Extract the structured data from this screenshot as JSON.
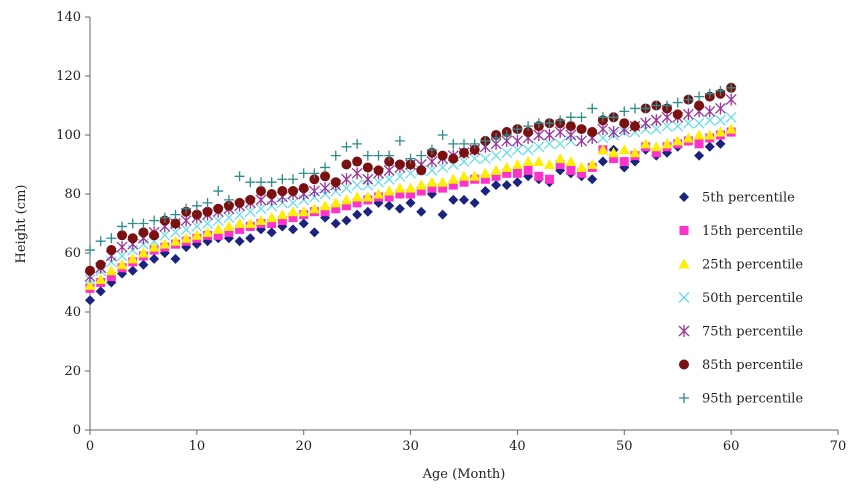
{
  "chart_data": {
    "type": "scatter",
    "title": "",
    "xlabel": "Age (Month)",
    "ylabel": "Height (cm)",
    "xlim": [
      0,
      70
    ],
    "ylim": [
      0,
      140
    ],
    "xticks": [
      0,
      10,
      20,
      30,
      40,
      50,
      60,
      70
    ],
    "yticks": [
      0,
      20,
      40,
      60,
      80,
      100,
      120,
      140
    ],
    "grid": false,
    "legend_position": "right",
    "x": [
      0,
      1,
      2,
      3,
      4,
      5,
      6,
      7,
      8,
      9,
      10,
      11,
      12,
      13,
      14,
      15,
      16,
      17,
      18,
      19,
      20,
      21,
      22,
      23,
      24,
      25,
      26,
      27,
      28,
      29,
      30,
      31,
      32,
      33,
      34,
      35,
      36,
      37,
      38,
      39,
      40,
      41,
      42,
      43,
      44,
      45,
      46,
      47,
      48,
      49,
      50,
      51,
      52,
      53,
      54,
      55,
      56,
      57,
      58,
      59,
      60
    ],
    "series": [
      {
        "name": "5th percentile",
        "marker": "diamond",
        "color": "#1a237e",
        "values": [
          44,
          47,
          50,
          53,
          54,
          56,
          58,
          60,
          58,
          62,
          63,
          64,
          65,
          65,
          64,
          65,
          68,
          67,
          69,
          68,
          70,
          67,
          72,
          70,
          71,
          73,
          74,
          77,
          76,
          75,
          77,
          74,
          80,
          73,
          78,
          78,
          77,
          81,
          83,
          83,
          84,
          86,
          85,
          84,
          88,
          87,
          86,
          85,
          91,
          95,
          89,
          91,
          95,
          93,
          94,
          96,
          98,
          93,
          96,
          97,
          101
        ]
      },
      {
        "name": "15th percentile",
        "marker": "square",
        "color": "#ff33cc",
        "values": [
          48,
          50,
          52,
          55,
          57,
          59,
          61,
          62,
          63,
          64,
          65,
          66,
          66,
          67,
          68,
          69,
          70,
          70,
          71,
          72,
          73,
          74,
          74,
          75,
          76,
          77,
          78,
          79,
          79,
          80,
          80,
          81,
          82,
          82,
          83,
          84,
          85,
          85,
          86,
          87,
          87,
          88,
          86,
          85,
          90,
          88,
          87,
          89,
          95,
          92,
          91,
          93,
          96,
          94,
          96,
          97,
          98,
          97,
          99,
          100,
          101
        ]
      },
      {
        "name": "25th percentile",
        "marker": "triangle",
        "color": "#ffee00",
        "values": [
          49,
          51,
          54,
          56,
          58,
          60,
          62,
          63,
          64,
          65,
          66,
          67,
          68,
          69,
          70,
          70,
          71,
          72,
          73,
          74,
          74,
          75,
          76,
          77,
          78,
          79,
          79,
          80,
          81,
          82,
          82,
          83,
          84,
          84,
          85,
          86,
          86,
          87,
          88,
          89,
          90,
          91,
          91,
          90,
          92,
          91,
          89,
          90,
          95,
          94,
          95,
          94,
          97,
          96,
          97,
          98,
          99,
          100,
          100,
          101,
          102
        ]
      },
      {
        "name": "50th percentile",
        "marker": "x",
        "color": "#66ddee",
        "values": [
          51,
          54,
          57,
          59,
          61,
          63,
          64,
          66,
          67,
          68,
          69,
          70,
          71,
          72,
          73,
          74,
          75,
          76,
          77,
          77,
          78,
          79,
          80,
          81,
          82,
          83,
          83,
          84,
          85,
          86,
          87,
          88,
          88,
          89,
          90,
          91,
          92,
          92,
          93,
          94,
          95,
          95,
          96,
          97,
          97,
          98,
          98,
          99,
          99,
          100,
          101,
          101,
          102,
          102,
          103,
          103,
          104,
          104,
          105,
          105,
          106
        ]
      },
      {
        "name": "75th percentile",
        "marker": "star",
        "color": "#993399",
        "values": [
          52,
          55,
          59,
          62,
          63,
          65,
          67,
          69,
          70,
          71,
          72,
          73,
          74,
          75,
          76,
          77,
          78,
          78,
          79,
          80,
          80,
          81,
          82,
          83,
          85,
          87,
          85,
          87,
          88,
          89,
          90,
          90,
          91,
          92,
          93,
          94,
          95,
          96,
          97,
          98,
          98,
          99,
          100,
          100,
          101,
          100,
          98,
          99,
          102,
          101,
          102,
          103,
          104,
          105,
          106,
          106,
          107,
          108,
          108,
          109,
          112
        ]
      },
      {
        "name": "85th percentile",
        "marker": "circle",
        "color": "#7a1010",
        "values": [
          54,
          56,
          61,
          66,
          65,
          67,
          66,
          71,
          70,
          74,
          73,
          74,
          75,
          76,
          77,
          78,
          81,
          80,
          81,
          81,
          82,
          85,
          86,
          84,
          90,
          91,
          89,
          88,
          91,
          90,
          90,
          88,
          94,
          93,
          92,
          94,
          95,
          98,
          100,
          101,
          102,
          101,
          103,
          104,
          104,
          103,
          102,
          101,
          105,
          106,
          104,
          103,
          109,
          110,
          109,
          107,
          112,
          110,
          113,
          114,
          116
        ]
      },
      {
        "name": "95th percentile",
        "marker": "plus",
        "color": "#2e8b8b",
        "values": [
          61,
          64,
          65,
          69,
          70,
          70,
          71,
          72,
          73,
          75,
          76,
          77,
          81,
          78,
          86,
          84,
          84,
          84,
          85,
          85,
          87,
          87,
          89,
          93,
          96,
          97,
          93,
          93,
          93,
          98,
          92,
          93,
          95,
          100,
          97,
          97,
          97,
          98,
          99,
          100,
          102,
          103,
          104,
          104,
          105,
          106,
          106,
          109,
          106,
          106,
          108,
          109,
          109,
          110,
          110,
          111,
          112,
          113,
          114,
          115,
          116
        ]
      }
    ]
  }
}
